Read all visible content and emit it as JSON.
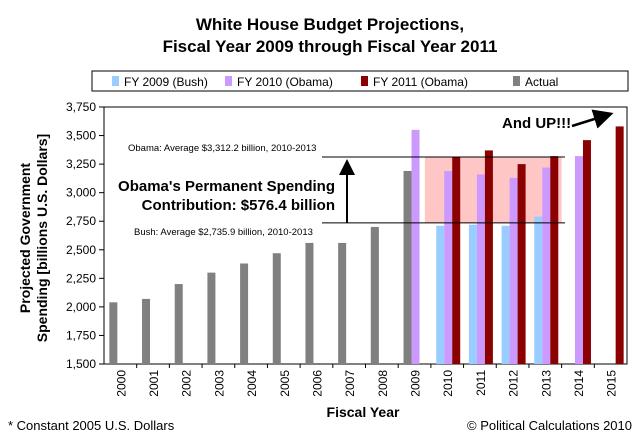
{
  "chart_data": {
    "type": "bar",
    "title": [
      "White House Budget Projections,",
      "Fiscal Year 2009 through Fiscal Year 2011"
    ],
    "xlabel": "Fiscal Year",
    "ylabel": [
      "Projected Government",
      "Spending [billions U.S. Dollars]"
    ],
    "ylim": [
      1500,
      3750
    ],
    "yticks": [
      "1,500",
      "1,750",
      "2,000",
      "2,250",
      "2,500",
      "2,750",
      "3,000",
      "3,250",
      "3,500",
      "3,750"
    ],
    "grid": false,
    "legend_position": "top",
    "categories": [
      "2000",
      "2001",
      "2002",
      "2003",
      "2004",
      "2005",
      "2006",
      "2007",
      "2008",
      "2009",
      "2010",
      "2011",
      "2012",
      "2013",
      "2014",
      "2015"
    ],
    "series": [
      {
        "name": "FY 2009 (Bush)",
        "color": "#99ccff",
        "values": [
          null,
          null,
          null,
          null,
          null,
          null,
          null,
          null,
          2680,
          2780,
          2710,
          2720,
          2710,
          2790,
          null,
          null
        ]
      },
      {
        "name": "FY 2010 (Obama)",
        "color": "#cc99ff",
        "values": [
          null,
          null,
          null,
          null,
          null,
          null,
          null,
          null,
          null,
          3550,
          3190,
          3160,
          3130,
          3220,
          3320,
          null
        ]
      },
      {
        "name": "FY 2011 (Obama)",
        "color": "#8b0000",
        "values": [
          null,
          null,
          null,
          null,
          null,
          null,
          null,
          null,
          null,
          null,
          3310,
          3370,
          3250,
          3320,
          3460,
          3580
        ]
      },
      {
        "name": "Actual",
        "color": "#808080",
        "values": [
          2040,
          2070,
          2200,
          2300,
          2380,
          2470,
          2560,
          2560,
          2700,
          3190,
          null,
          null,
          null,
          null,
          null,
          null
        ]
      }
    ],
    "annotations": {
      "obama_avg_label": "Obama: Average $3,312.2 billion, 2010-2013",
      "obama_avg_value": 3312.2,
      "bush_avg_label": "Bush: Average $2,735.9 billion, 2010-2013",
      "bush_avg_value": 2735.9,
      "contribution_line1": "Obama's Permanent Spending",
      "contribution_line2": "Contribution: $576.4 billion",
      "and_up": "And UP!!!",
      "shade_color": "#ffb3b3"
    }
  },
  "footer": {
    "left": "* Constant 2005 U.S. Dollars",
    "right": "© Political Calculations 2010"
  }
}
